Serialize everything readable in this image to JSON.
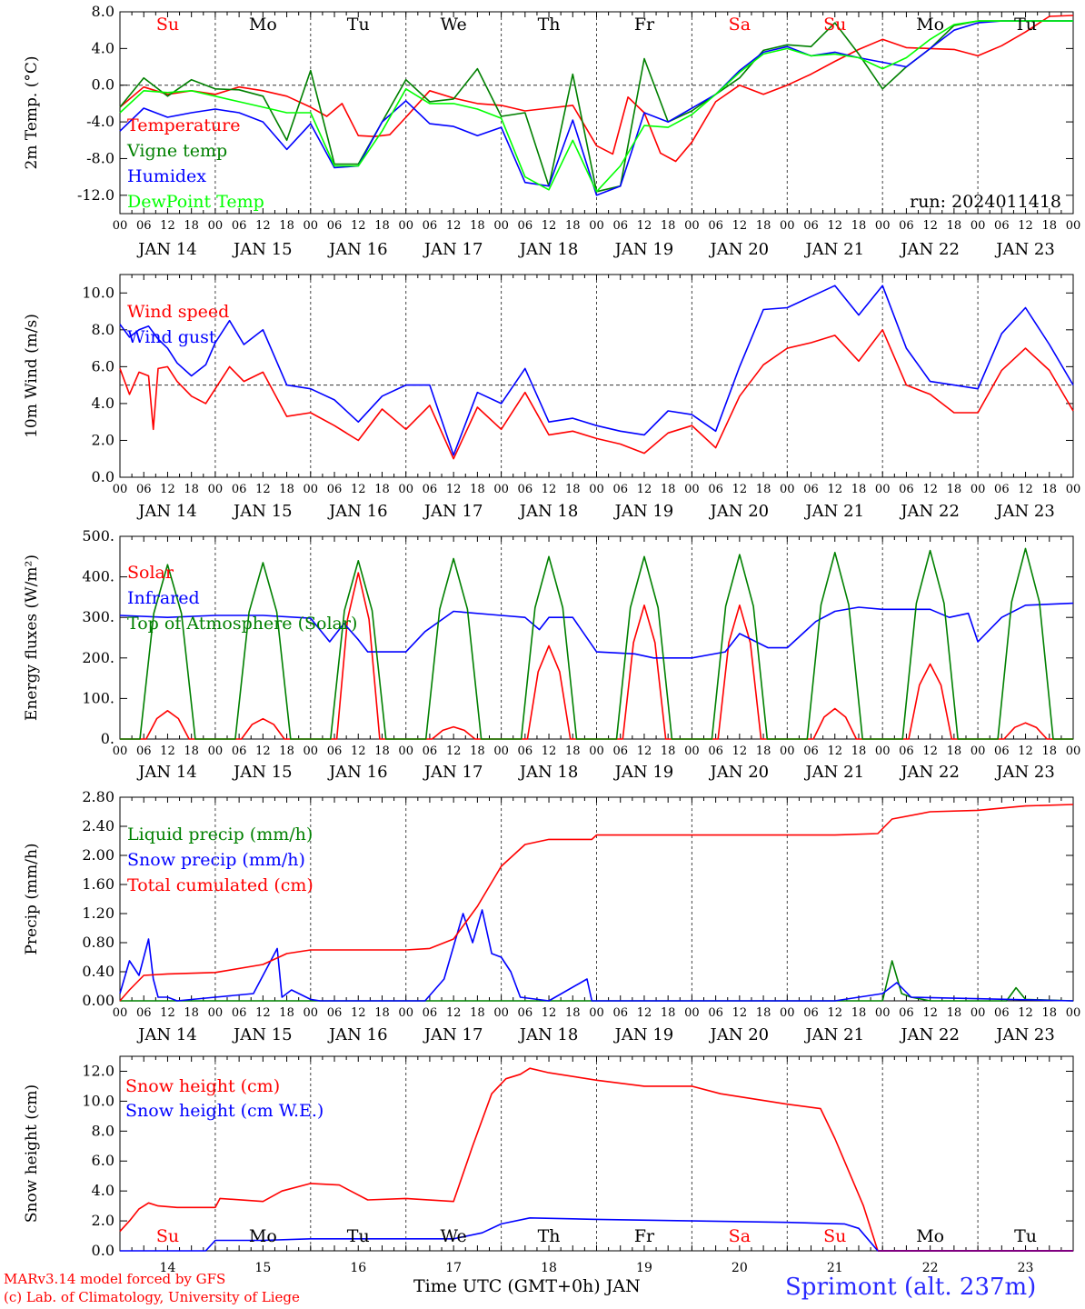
{
  "run_label": "run: 2024011418",
  "footer": {
    "credit1": "MARv3.14 model forced by GFS",
    "credit2": "(c) Lab. of Climatology, University of Liege",
    "xlabel": "Time UTC (GMT+0h) JAN",
    "location": "Sprimont (alt. 237m)"
  },
  "colors": {
    "red": "#ff0000",
    "blue": "#0000ff",
    "green": "#008000",
    "light_green": "#00ff00",
    "purple": "#800080"
  },
  "days": [
    "Su",
    "Mo",
    "Tu",
    "We",
    "Th",
    "Fr",
    "Sa",
    "Su",
    "Mo",
    "Tu"
  ],
  "weekend_days": [
    "Su",
    "Sa"
  ],
  "hour_ticks": [
    "00",
    "06",
    "12",
    "18"
  ],
  "date_labels": [
    "JAN 14",
    "JAN 15",
    "JAN 16",
    "JAN 17",
    "JAN 18",
    "JAN 19",
    "JAN 20",
    "JAN 21",
    "JAN 22",
    "JAN 23"
  ],
  "bottom_day_numbers": [
    "14",
    "15",
    "16",
    "17",
    "18",
    "19",
    "20",
    "21",
    "22",
    "23"
  ],
  "chart_data": [
    {
      "type": "line",
      "ylabel": "2m Temp. (°C)",
      "ylim": [
        -14,
        8
      ],
      "yticks": [
        8.0,
        4.0,
        0.0,
        -4.0,
        -8.0,
        -12.0
      ],
      "ytick_labels": [
        "8.0",
        "4.0",
        "0.0",
        "-4.0",
        "-8.0",
        "-12.0"
      ],
      "ref_line": 0,
      "x_units": "days since JAN 14 00 UTC",
      "series": [
        {
          "name": "Temperature",
          "color": "#ff0000",
          "x": [
            0,
            0.25,
            0.5,
            0.75,
            1,
            1.25,
            1.5,
            1.75,
            2,
            2.17,
            2.33,
            2.5,
            2.67,
            2.83,
            3,
            3.25,
            3.5,
            3.75,
            4,
            4.25,
            4.5,
            4.75,
            5,
            5.17,
            5.33,
            5.5,
            5.67,
            5.83,
            6,
            6.25,
            6.5,
            6.75,
            7,
            7.25,
            7.5,
            7.75,
            8,
            8.25,
            8.5,
            8.75,
            9,
            9.25,
            9.5,
            9.75,
            10
          ],
          "values": [
            -2.4,
            -0.2,
            -1.0,
            -0.6,
            -1.0,
            -0.2,
            -0.6,
            -1.2,
            -2.4,
            -3.4,
            -2.0,
            -5.5,
            -5.6,
            -5.4,
            -3.5,
            -0.6,
            -1.4,
            -2.0,
            -2.2,
            -2.8,
            -2.5,
            -2.2,
            -6.6,
            -7.5,
            -1.3,
            -3.0,
            -7.4,
            -8.3,
            -6.2,
            -1.8,
            0.0,
            -1.0,
            0.0,
            1.2,
            2.6,
            3.9,
            5.0,
            4.1,
            4.0,
            3.9,
            3.2,
            4.3,
            5.8,
            7.5,
            7.6
          ]
        },
        {
          "name": "Vigne temp",
          "color": "#008000",
          "x": [
            0,
            0.25,
            0.5,
            0.75,
            1,
            1.25,
            1.5,
            1.75,
            2,
            2.25,
            2.5,
            2.75,
            3,
            3.25,
            3.5,
            3.75,
            4,
            4.25,
            4.5,
            4.75,
            5,
            5.25,
            5.5,
            5.75,
            6,
            6.25,
            6.5,
            6.75,
            7,
            7.25,
            7.5,
            7.75,
            8,
            8.25,
            8.5,
            8.75,
            9,
            9.25,
            9.5,
            9.75,
            10
          ],
          "values": [
            -2.4,
            0.8,
            -1.2,
            0.6,
            -0.4,
            -0.5,
            -1.2,
            -6.0,
            1.6,
            -8.6,
            -8.6,
            -4.0,
            0.6,
            -1.8,
            -1.5,
            1.8,
            -3.4,
            -3.0,
            -11.0,
            1.2,
            -11.6,
            -11.0,
            2.9,
            -4.0,
            -2.8,
            -1.0,
            0.8,
            3.8,
            4.4,
            4.2,
            6.8,
            3.4,
            -0.4,
            2.0,
            4.0,
            6.5,
            7.0,
            7.0,
            7.0,
            7.0,
            7.0
          ]
        },
        {
          "name": "Humidex",
          "color": "#0000ff",
          "x": [
            0,
            0.25,
            0.5,
            0.75,
            1,
            1.25,
            1.5,
            1.75,
            2,
            2.25,
            2.5,
            2.75,
            3,
            3.25,
            3.5,
            3.75,
            4,
            4.25,
            4.5,
            4.75,
            5,
            5.25,
            5.5,
            5.75,
            6,
            6.25,
            6.5,
            6.75,
            7,
            7.25,
            7.5,
            7.75,
            8,
            8.25,
            8.5,
            8.75,
            9,
            9.25,
            9.5,
            9.75,
            10
          ],
          "values": [
            -5.0,
            -2.5,
            -3.5,
            -3.0,
            -2.6,
            -3.0,
            -4.0,
            -7.0,
            -4.2,
            -9.0,
            -8.8,
            -4.0,
            -1.7,
            -4.2,
            -4.5,
            -5.5,
            -4.6,
            -10.6,
            -11.0,
            -3.8,
            -12.0,
            -11.0,
            -3.0,
            -4.0,
            -2.5,
            -1.0,
            1.6,
            3.6,
            4.2,
            3.2,
            3.6,
            3.0,
            2.5,
            2.0,
            4.0,
            6.0,
            6.8,
            7.0,
            7.0,
            7.0,
            7.0
          ]
        },
        {
          "name": "DewPoint Temp",
          "color": "#00ff00",
          "x": [
            0,
            0.25,
            0.5,
            0.75,
            1,
            1.25,
            1.5,
            1.75,
            2,
            2.25,
            2.5,
            2.75,
            3,
            3.25,
            3.5,
            3.75,
            4,
            4.25,
            4.5,
            4.75,
            5,
            5.25,
            5.5,
            5.75,
            6,
            6.25,
            6.5,
            6.75,
            7,
            7.25,
            7.5,
            7.75,
            8,
            8.25,
            8.5,
            8.75,
            9,
            9.25,
            9.5,
            9.75,
            10
          ],
          "values": [
            -3.0,
            -0.6,
            -0.8,
            -0.6,
            -1.2,
            -1.8,
            -2.4,
            -3.0,
            -3.0,
            -8.8,
            -8.8,
            -5.0,
            -0.4,
            -2.0,
            -2.0,
            -2.6,
            -3.6,
            -10.0,
            -11.4,
            -6.0,
            -11.6,
            -8.8,
            -4.4,
            -4.6,
            -3.2,
            -1.0,
            1.4,
            3.4,
            4.0,
            3.2,
            3.4,
            3.0,
            1.8,
            3.0,
            5.0,
            6.6,
            7.0,
            7.0,
            7.0,
            7.0,
            7.0
          ]
        }
      ]
    },
    {
      "type": "line",
      "ylabel": "10m Wind (m/s)",
      "ylim": [
        0,
        11
      ],
      "yticks": [
        10.0,
        8.0,
        6.0,
        4.0,
        2.0,
        0.0
      ],
      "ytick_labels": [
        "10.0",
        "8.0",
        "6.0",
        "4.0",
        "2.0",
        "0.0"
      ],
      "ref_line": 5,
      "x_units": "days since JAN 14 00 UTC",
      "series": [
        {
          "name": "Wind speed",
          "color": "#ff0000",
          "x": [
            0,
            0.1,
            0.2,
            0.3,
            0.35,
            0.4,
            0.5,
            0.6,
            0.75,
            0.9,
            1,
            1.15,
            1.3,
            1.5,
            1.75,
            2,
            2.25,
            2.5,
            2.75,
            3,
            3.25,
            3.5,
            3.75,
            4,
            4.25,
            4.5,
            4.75,
            5,
            5.25,
            5.5,
            5.75,
            6,
            6.25,
            6.5,
            6.75,
            7,
            7.25,
            7.5,
            7.75,
            8,
            8.25,
            8.5,
            8.75,
            9,
            9.25,
            9.5,
            9.75,
            10
          ],
          "values": [
            5.9,
            4.5,
            5.7,
            5.5,
            2.6,
            5.9,
            6.0,
            5.2,
            4.4,
            4.0,
            4.8,
            6.0,
            5.2,
            5.7,
            3.3,
            3.5,
            2.8,
            2.0,
            3.7,
            2.6,
            3.9,
            1.0,
            3.8,
            2.6,
            4.6,
            2.3,
            2.5,
            2.1,
            1.8,
            1.3,
            2.4,
            2.8,
            1.6,
            4.4,
            6.1,
            7.0,
            7.3,
            7.7,
            6.3,
            8.0,
            5.0,
            4.5,
            3.5,
            3.5,
            5.8,
            7.0,
            5.8,
            3.6
          ]
        },
        {
          "name": "Wind gust",
          "color": "#0000ff",
          "x": [
            0,
            0.1,
            0.2,
            0.3,
            0.4,
            0.5,
            0.6,
            0.75,
            0.9,
            1,
            1.15,
            1.3,
            1.5,
            1.75,
            2,
            2.25,
            2.5,
            2.75,
            3,
            3.25,
            3.5,
            3.75,
            4,
            4.25,
            4.5,
            4.75,
            5,
            5.25,
            5.5,
            5.75,
            6,
            6.25,
            6.5,
            6.75,
            7,
            7.25,
            7.5,
            7.75,
            8,
            8.25,
            8.5,
            8.75,
            9,
            9.25,
            9.5,
            9.75,
            10
          ],
          "values": [
            8.3,
            7.6,
            8.0,
            8.2,
            7.5,
            7.0,
            6.2,
            5.5,
            6.1,
            7.3,
            8.5,
            7.2,
            8.0,
            5.0,
            4.8,
            4.2,
            3.0,
            4.4,
            5.0,
            5.0,
            1.2,
            4.6,
            4.0,
            5.9,
            3.0,
            3.2,
            2.8,
            2.5,
            2.3,
            3.6,
            3.4,
            2.5,
            6.0,
            9.1,
            9.2,
            9.8,
            10.4,
            8.8,
            10.4,
            7.0,
            5.2,
            5.0,
            4.8,
            7.8,
            9.2,
            7.2,
            5.0
          ]
        }
      ]
    },
    {
      "type": "line",
      "ylabel": "Energy fluxes (W/m²)",
      "ylim": [
        0,
        500
      ],
      "yticks": [
        500,
        400,
        300,
        200,
        100,
        0
      ],
      "ytick_labels": [
        "500.",
        "400.",
        "300.",
        "200.",
        "100.",
        "0."
      ],
      "x_units": "days since JAN 14 00 UTC",
      "series": [
        {
          "name": "Solar",
          "color": "#ff0000",
          "peaks": [
            70,
            50,
            410,
            30,
            230,
            330,
            330,
            75,
            185,
            40
          ]
        },
        {
          "name": "Infrared",
          "color": "#0000ff",
          "x": [
            0,
            0.5,
            1,
            1.5,
            2,
            2.2,
            2.35,
            2.5,
            2.6,
            3,
            3.2,
            3.5,
            4,
            4.25,
            4.4,
            4.5,
            4.75,
            5,
            5.4,
            5.6,
            6,
            6.35,
            6.5,
            6.8,
            7,
            7.3,
            7.5,
            7.75,
            8,
            8.4,
            8.5,
            8.7,
            8.9,
            9,
            9.25,
            9.5,
            10
          ],
          "values": [
            305,
            300,
            305,
            305,
            298,
            240,
            285,
            245,
            215,
            215,
            265,
            315,
            305,
            300,
            270,
            300,
            300,
            215,
            210,
            200,
            200,
            215,
            260,
            225,
            225,
            290,
            315,
            325,
            320,
            320,
            320,
            300,
            310,
            240,
            300,
            330,
            335
          ]
        },
        {
          "name": "Top of Atmosphere (Solar)",
          "color": "#008000",
          "peaks": [
            430,
            435,
            440,
            445,
            450,
            450,
            455,
            460,
            465,
            470
          ]
        }
      ]
    },
    {
      "type": "line",
      "ylabel": "Precip (mm/h)",
      "ylim": [
        0,
        2.8
      ],
      "yticks": [
        2.8,
        2.4,
        2.0,
        1.6,
        1.2,
        0.8,
        0.4,
        0.0
      ],
      "ytick_labels": [
        "2.80",
        "2.40",
        "2.00",
        "1.60",
        "1.20",
        "0.80",
        "0.40",
        "0.00"
      ],
      "x_units": "days since JAN 14 00 UTC",
      "series": [
        {
          "name": "Liquid precip (mm/h)",
          "color": "#008000",
          "x": [
            0,
            8.0,
            8.1,
            8.2,
            8.3,
            8.5,
            9.3,
            9.4,
            9.5,
            10
          ],
          "values": [
            0,
            0,
            0.55,
            0.1,
            0.05,
            0,
            0,
            0.18,
            0.02,
            0
          ]
        },
        {
          "name": "Snow precip (mm/h)",
          "color": "#0000ff",
          "x": [
            0,
            0.1,
            0.2,
            0.3,
            0.35,
            0.4,
            0.5,
            0.6,
            1,
            1.4,
            1.65,
            1.7,
            1.8,
            2,
            2.1,
            3.2,
            3.4,
            3.6,
            3.7,
            3.8,
            3.9,
            4,
            4.1,
            4.2,
            4.5,
            4.9,
            4.95,
            5,
            7.5,
            8.0,
            8.15,
            8.3,
            10
          ],
          "values": [
            0.1,
            0.55,
            0.35,
            0.85,
            0.3,
            0.05,
            0.05,
            0.0,
            0.05,
            0.1,
            0.72,
            0.05,
            0.15,
            0.02,
            0.0,
            0.0,
            0.3,
            1.2,
            0.8,
            1.25,
            0.65,
            0.6,
            0.4,
            0.05,
            0.0,
            0.3,
            0.0,
            0.0,
            0.0,
            0.1,
            0.25,
            0.05,
            0.0
          ]
        },
        {
          "name": "Total cumulated (cm)",
          "color": "#ff0000",
          "x": [
            0,
            0.1,
            0.25,
            0.5,
            1,
            1.5,
            1.75,
            2,
            2.5,
            3,
            3.25,
            3.5,
            3.75,
            4,
            4.25,
            4.5,
            4.95,
            5,
            6,
            7,
            7.5,
            7.95,
            8.1,
            8.5,
            9,
            9.5,
            10
          ],
          "values": [
            0.0,
            0.15,
            0.35,
            0.37,
            0.39,
            0.5,
            0.65,
            0.7,
            0.7,
            0.7,
            0.72,
            0.85,
            1.3,
            1.85,
            2.15,
            2.22,
            2.22,
            2.28,
            2.28,
            2.28,
            2.28,
            2.3,
            2.5,
            2.6,
            2.62,
            2.68,
            2.7
          ]
        }
      ]
    },
    {
      "type": "line",
      "ylabel": "Snow height (cm)",
      "ylim": [
        0,
        13
      ],
      "yticks": [
        12.0,
        10.0,
        8.0,
        6.0,
        4.0,
        2.0,
        0.0
      ],
      "ytick_labels": [
        "12.0",
        "10.0",
        "8.0",
        "6.0",
        "4.0",
        "2.0",
        "0.0"
      ],
      "x_units": "days since JAN 14 00 UTC",
      "series": [
        {
          "name": "Snow height (cm)",
          "color": "#ff0000",
          "x": [
            0,
            0.1,
            0.2,
            0.3,
            0.4,
            0.6,
            1,
            1.05,
            1.5,
            1.7,
            2,
            2.3,
            2.6,
            3,
            3.5,
            3.7,
            3.9,
            4.05,
            4.2,
            4.3,
            4.5,
            5,
            5.5,
            6,
            6.3,
            7,
            7.35,
            7.5,
            7.8,
            7.95,
            8.1,
            10
          ],
          "values": [
            1.3,
            2.0,
            2.8,
            3.2,
            3.0,
            2.9,
            2.9,
            3.5,
            3.3,
            4.0,
            4.5,
            4.4,
            3.4,
            3.5,
            3.3,
            7.0,
            10.5,
            11.5,
            11.8,
            12.2,
            11.9,
            11.4,
            11.0,
            11.0,
            10.5,
            9.8,
            9.5,
            7.5,
            3.0,
            0.0,
            0.0,
            0.0
          ]
        },
        {
          "name": "Snow height (cm W.E.)",
          "color": "#0000ff",
          "x": [
            0,
            0.9,
            1,
            1.5,
            2,
            3,
            3.5,
            3.8,
            4,
            4.3,
            5,
            6,
            7,
            7.6,
            7.75,
            7.95,
            10
          ],
          "values": [
            0,
            0,
            0.7,
            0.7,
            0.8,
            0.8,
            0.8,
            1.2,
            1.8,
            2.2,
            2.1,
            2.0,
            1.9,
            1.8,
            1.5,
            0.0,
            0.0
          ]
        }
      ]
    }
  ]
}
